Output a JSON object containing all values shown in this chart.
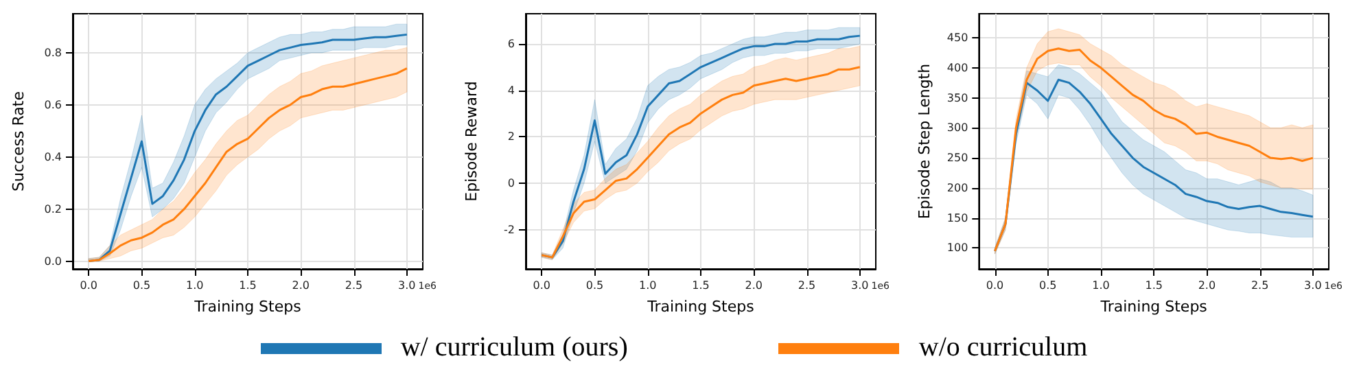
{
  "chart_data": [
    {
      "type": "line",
      "xlabel": "Training Steps",
      "ylabel": "Success Rate",
      "annotations": [
        "1e6"
      ],
      "legend": "bottom",
      "grid": true,
      "xlim": [
        -0.15,
        3.15
      ],
      "ylim": [
        -0.03,
        0.95
      ],
      "xticks": [
        {
          "value": 0,
          "label": "0.0"
        },
        {
          "value": 0.5,
          "label": "0.5"
        },
        {
          "value": 1,
          "label": "1.0"
        },
        {
          "value": 1.5,
          "label": "1.5"
        },
        {
          "value": 2,
          "label": "2.0"
        },
        {
          "value": 2.5,
          "label": "2.5"
        },
        {
          "value": 3,
          "label": "3.0"
        }
      ],
      "yticks": [
        {
          "value": 0,
          "label": "0.0"
        },
        {
          "value": 0.2,
          "label": "0.2"
        },
        {
          "value": 0.4,
          "label": "0.4"
        },
        {
          "value": 0.6,
          "label": "0.6"
        },
        {
          "value": 0.8,
          "label": "0.8"
        }
      ],
      "x": [
        0,
        0.1,
        0.2,
        0.3,
        0.4,
        0.5,
        0.6,
        0.7,
        0.8,
        0.9,
        1,
        1.1,
        1.2,
        1.3,
        1.4,
        1.5,
        1.6,
        1.7,
        1.8,
        1.9,
        2,
        2.1,
        2.2,
        2.3,
        2.4,
        2.5,
        2.6,
        2.7,
        2.8,
        2.9,
        3
      ],
      "series": [
        {
          "name": "w/ curriculum (ours)",
          "color": "#1f77b4",
          "values": [
            0,
            0.005,
            0.04,
            0.18,
            0.32,
            0.46,
            0.22,
            0.25,
            0.31,
            0.39,
            0.5,
            0.58,
            0.64,
            0.67,
            0.71,
            0.75,
            0.77,
            0.79,
            0.81,
            0.82,
            0.83,
            0.835,
            0.84,
            0.85,
            0.85,
            0.85,
            0.855,
            0.86,
            0.86,
            0.865,
            0.87
          ],
          "lower": [
            0,
            0,
            0.02,
            0.12,
            0.25,
            0.36,
            0.17,
            0.2,
            0.24,
            0.3,
            0.4,
            0.5,
            0.57,
            0.61,
            0.66,
            0.7,
            0.72,
            0.74,
            0.77,
            0.78,
            0.79,
            0.8,
            0.8,
            0.81,
            0.81,
            0.81,
            0.82,
            0.82,
            0.82,
            0.83,
            0.83
          ],
          "upper": [
            0.01,
            0.015,
            0.06,
            0.24,
            0.39,
            0.56,
            0.28,
            0.3,
            0.38,
            0.48,
            0.6,
            0.66,
            0.7,
            0.73,
            0.76,
            0.8,
            0.82,
            0.84,
            0.86,
            0.87,
            0.87,
            0.88,
            0.88,
            0.89,
            0.89,
            0.9,
            0.9,
            0.9,
            0.9,
            0.91,
            0.91
          ]
        },
        {
          "name": "w/o curriculum",
          "color": "#ff7f0e",
          "values": [
            0,
            0.005,
            0.03,
            0.06,
            0.08,
            0.09,
            0.11,
            0.14,
            0.16,
            0.2,
            0.25,
            0.3,
            0.36,
            0.42,
            0.45,
            0.47,
            0.51,
            0.55,
            0.58,
            0.6,
            0.63,
            0.64,
            0.66,
            0.67,
            0.67,
            0.68,
            0.69,
            0.7,
            0.71,
            0.72,
            0.74
          ],
          "lower": [
            0,
            0,
            0.01,
            0.02,
            0.04,
            0.05,
            0.07,
            0.09,
            0.1,
            0.13,
            0.17,
            0.22,
            0.27,
            0.33,
            0.37,
            0.4,
            0.43,
            0.47,
            0.5,
            0.52,
            0.55,
            0.56,
            0.57,
            0.58,
            0.58,
            0.59,
            0.6,
            0.61,
            0.62,
            0.63,
            0.65
          ],
          "upper": [
            0.01,
            0.015,
            0.06,
            0.1,
            0.12,
            0.14,
            0.16,
            0.2,
            0.23,
            0.28,
            0.34,
            0.39,
            0.45,
            0.5,
            0.54,
            0.56,
            0.6,
            0.64,
            0.67,
            0.69,
            0.72,
            0.73,
            0.75,
            0.76,
            0.77,
            0.78,
            0.79,
            0.8,
            0.81,
            0.81,
            0.82
          ]
        }
      ]
    },
    {
      "type": "line",
      "xlabel": "Training Steps",
      "ylabel": "Episode Reward",
      "annotations": [
        "1e6"
      ],
      "grid": true,
      "xlim": [
        -0.15,
        3.15
      ],
      "ylim": [
        -3.7,
        7.3
      ],
      "xticks": [
        {
          "value": 0,
          "label": "0.0"
        },
        {
          "value": 0.5,
          "label": "0.5"
        },
        {
          "value": 1,
          "label": "1.0"
        },
        {
          "value": 1.5,
          "label": "1.5"
        },
        {
          "value": 2,
          "label": "2.0"
        },
        {
          "value": 2.5,
          "label": "2.5"
        },
        {
          "value": 3,
          "label": "3.0"
        }
      ],
      "yticks": [
        -2,
        0,
        2,
        4,
        6
      ],
      "x": [
        0,
        0.1,
        0.2,
        0.3,
        0.4,
        0.5,
        0.6,
        0.7,
        0.8,
        0.9,
        1,
        1.1,
        1.2,
        1.3,
        1.4,
        1.5,
        1.6,
        1.7,
        1.8,
        1.9,
        2,
        2.1,
        2.2,
        2.3,
        2.4,
        2.5,
        2.6,
        2.7,
        2.8,
        2.9,
        3
      ],
      "series": [
        {
          "color": "#1f77b4",
          "values": [
            -3.1,
            -3.2,
            -2.5,
            -0.8,
            0.6,
            2.7,
            0.4,
            0.9,
            1.2,
            2.1,
            3.3,
            3.8,
            4.3,
            4.4,
            4.7,
            5,
            5.2,
            5.4,
            5.6,
            5.8,
            5.9,
            5.9,
            6,
            6,
            6.1,
            6.1,
            6.2,
            6.2,
            6.2,
            6.3,
            6.35
          ],
          "lower": [
            -3.2,
            -3.3,
            -2.8,
            -1.3,
            0,
            1.8,
            0,
            0.3,
            0.6,
            1.4,
            2.6,
            3.2,
            3.6,
            3.8,
            4.1,
            4.5,
            4.7,
            4.9,
            5.2,
            5.4,
            5.5,
            5.5,
            5.6,
            5.6,
            5.7,
            5.7,
            5.8,
            5.8,
            5.8,
            5.9,
            6
          ],
          "upper": [
            -3,
            -3.1,
            -2.2,
            -0.3,
            1.2,
            3.6,
            0.8,
            1.5,
            1.9,
            2.8,
            4.2,
            4.6,
            4.9,
            5,
            5.2,
            5.5,
            5.6,
            5.8,
            6,
            6.2,
            6.3,
            6.3,
            6.4,
            6.5,
            6.5,
            6.6,
            6.6,
            6.6,
            6.7,
            6.7,
            6.7
          ]
        },
        {
          "color": "#ff7f0e",
          "values": [
            -3.1,
            -3.2,
            -2.3,
            -1.3,
            -0.8,
            -0.7,
            -0.3,
            0.1,
            0.2,
            0.6,
            1.1,
            1.6,
            2.1,
            2.4,
            2.6,
            3,
            3.3,
            3.6,
            3.8,
            3.9,
            4.2,
            4.3,
            4.4,
            4.5,
            4.4,
            4.5,
            4.6,
            4.7,
            4.9,
            4.9,
            5
          ],
          "lower": [
            -3.2,
            -3.3,
            -2.6,
            -1.7,
            -1.2,
            -1.1,
            -0.7,
            -0.4,
            -0.3,
            0,
            0.5,
            0.9,
            1.4,
            1.7,
            1.9,
            2.3,
            2.6,
            2.9,
            3.1,
            3.2,
            3.4,
            3.5,
            3.6,
            3.6,
            3.6,
            3.7,
            3.8,
            3.9,
            4,
            4.1,
            4.2
          ],
          "upper": [
            -3,
            -3.1,
            -2,
            -0.9,
            -0.4,
            -0.3,
            0.2,
            0.6,
            0.8,
            1.3,
            1.8,
            2.4,
            2.9,
            3.2,
            3.4,
            3.8,
            4.1,
            4.4,
            4.6,
            4.7,
            5,
            5.1,
            5.3,
            5.4,
            5.3,
            5.4,
            5.5,
            5.6,
            5.8,
            5.8,
            5.9
          ]
        }
      ]
    },
    {
      "type": "line",
      "xlabel": "Training Steps",
      "ylabel": "Episode Step Length",
      "annotations": [
        "1e6"
      ],
      "grid": true,
      "xlim": [
        -0.15,
        3.15
      ],
      "ylim": [
        65,
        490
      ],
      "xticks": [
        {
          "value": 0,
          "label": "0.0"
        },
        {
          "value": 0.5,
          "label": "0.5"
        },
        {
          "value": 1,
          "label": "1.0"
        },
        {
          "value": 1.5,
          "label": "1.5"
        },
        {
          "value": 2,
          "label": "2.0"
        },
        {
          "value": 2.5,
          "label": "2.5"
        },
        {
          "value": 3,
          "label": "3.0"
        }
      ],
      "yticks": [
        100,
        150,
        200,
        250,
        300,
        350,
        400,
        450
      ],
      "x": [
        0,
        0.1,
        0.2,
        0.3,
        0.4,
        0.5,
        0.6,
        0.7,
        0.8,
        0.9,
        1,
        1.1,
        1.2,
        1.3,
        1.4,
        1.5,
        1.6,
        1.7,
        1.8,
        1.9,
        2,
        2.1,
        2.2,
        2.3,
        2.4,
        2.5,
        2.6,
        2.7,
        2.8,
        2.9,
        3
      ],
      "series": [
        {
          "color": "#1f77b4",
          "values": [
            95,
            140,
            290,
            375,
            362,
            345,
            380,
            375,
            360,
            340,
            315,
            290,
            270,
            250,
            235,
            225,
            215,
            205,
            190,
            185,
            178,
            175,
            168,
            165,
            168,
            170,
            165,
            160,
            158,
            155,
            152
          ],
          "lower": [
            90,
            130,
            275,
            355,
            340,
            315,
            355,
            350,
            330,
            305,
            275,
            250,
            225,
            205,
            190,
            180,
            170,
            160,
            150,
            145,
            140,
            135,
            130,
            128,
            125,
            125,
            122,
            120,
            118,
            118,
            118
          ],
          "upper": [
            100,
            150,
            305,
            395,
            390,
            385,
            405,
            400,
            390,
            375,
            360,
            335,
            310,
            295,
            280,
            270,
            260,
            245,
            230,
            225,
            215,
            215,
            210,
            205,
            210,
            215,
            210,
            200,
            200,
            195,
            188
          ]
        },
        {
          "color": "#ff7f0e",
          "values": [
            95,
            140,
            300,
            380,
            415,
            428,
            432,
            428,
            430,
            412,
            400,
            385,
            370,
            355,
            345,
            330,
            320,
            315,
            305,
            290,
            292,
            285,
            280,
            275,
            270,
            260,
            250,
            248,
            250,
            245,
            250
          ],
          "lower": [
            90,
            130,
            285,
            360,
            395,
            405,
            408,
            405,
            405,
            385,
            370,
            350,
            335,
            320,
            305,
            290,
            275,
            270,
            260,
            245,
            245,
            240,
            230,
            225,
            220,
            210,
            205,
            200,
            200,
            198,
            198
          ],
          "upper": [
            100,
            150,
            315,
            400,
            440,
            460,
            465,
            460,
            455,
            440,
            430,
            420,
            405,
            395,
            385,
            375,
            370,
            360,
            345,
            335,
            340,
            335,
            330,
            325,
            320,
            310,
            300,
            300,
            305,
            300,
            305
          ]
        }
      ]
    }
  ]
}
